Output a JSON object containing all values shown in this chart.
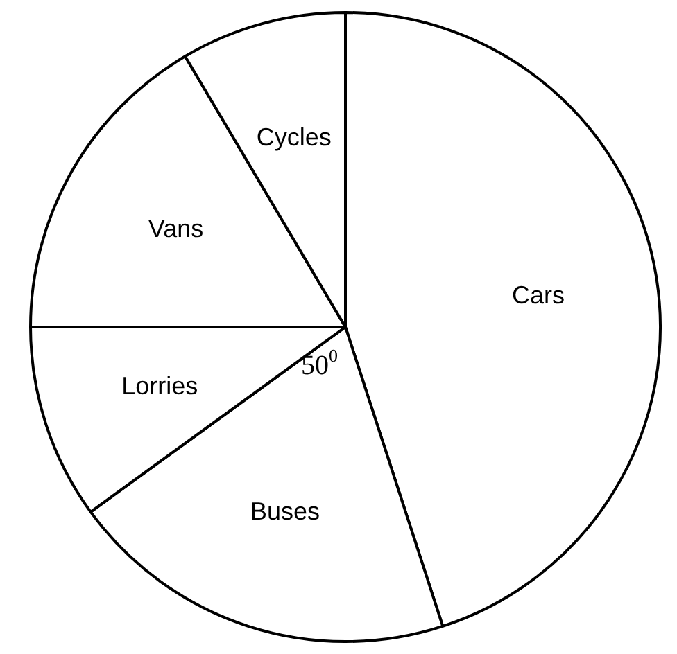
{
  "chart_data": {
    "type": "pie",
    "categories": [
      "Cars",
      "Buses",
      "Lorries",
      "Vans",
      "Cycles"
    ],
    "values": [
      45,
      20,
      10,
      16.5,
      8.5
    ],
    "colors": [
      "#ffffff",
      "#ffffff",
      "#ffffff",
      "#ffffff",
      "#ffffff"
    ],
    "annotations": [
      "50$^{0}$"
    ],
    "legend": false
  }
}
